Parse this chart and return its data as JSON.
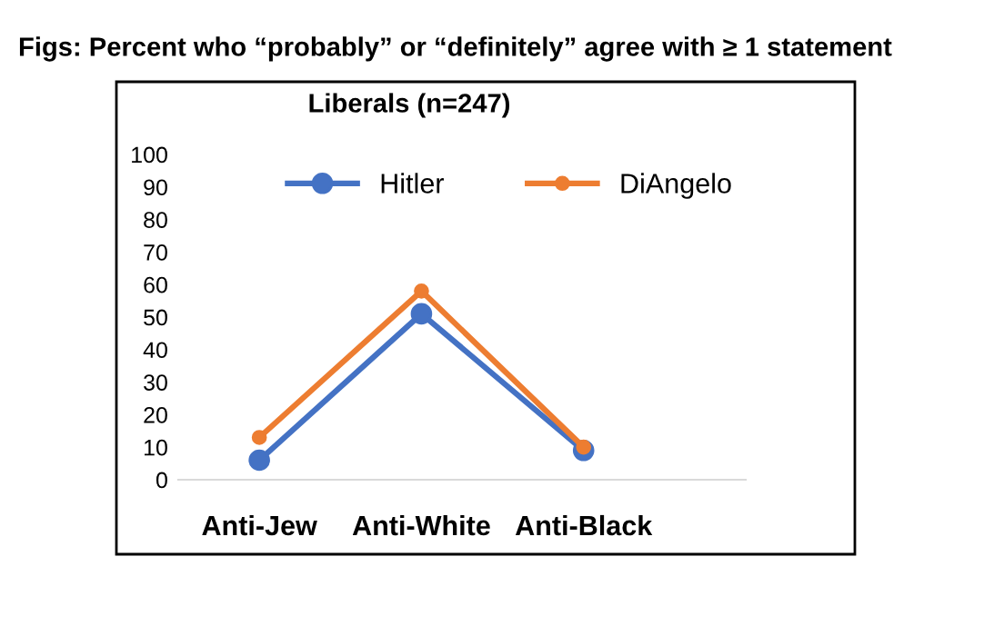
{
  "chart_data": {
    "type": "line",
    "title": "Figs: Percent who “probably” or “definitely” agree with ≥ 1 statement",
    "subtitle": "Liberals (n=247)",
    "categories": [
      "Anti-Jew",
      "Anti-White",
      "Anti-Black"
    ],
    "series": [
      {
        "name": "Hitler",
        "color": "#4472c4",
        "values": [
          6,
          51,
          9
        ]
      },
      {
        "name": "DiAngelo",
        "color": "#ed7d31",
        "values": [
          13,
          58,
          10
        ]
      }
    ],
    "ylim": [
      0,
      100
    ],
    "yticks": [
      0,
      10,
      20,
      30,
      40,
      50,
      60,
      70,
      80,
      90,
      100
    ],
    "grid": false,
    "legend": "top",
    "marker": "circle",
    "line_style": "solid"
  }
}
